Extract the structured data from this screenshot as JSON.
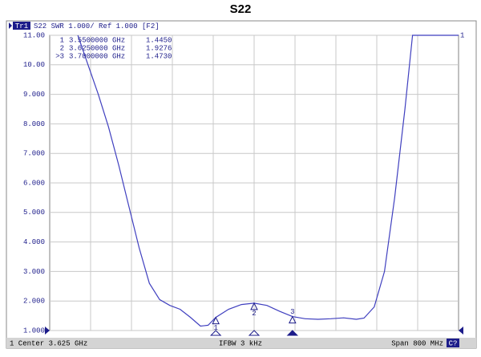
{
  "chart_data": {
    "type": "line",
    "title": "S22",
    "header": {
      "trace": "Tr1",
      "text": "S22  SWR 1.000/ Ref 1.000 [F2]"
    },
    "trace_number": "1",
    "x": [
      3.28,
      3.3,
      3.32,
      3.34,
      3.36,
      3.38,
      3.4,
      3.42,
      3.44,
      3.46,
      3.48,
      3.5,
      3.52,
      3.535,
      3.55,
      3.575,
      3.6,
      3.625,
      3.65,
      3.675,
      3.7,
      3.725,
      3.75,
      3.775,
      3.8,
      3.825,
      3.84,
      3.86,
      3.88,
      3.9,
      3.92,
      3.935,
      4.025
    ],
    "values": [
      11.0,
      10.0,
      9.0,
      7.9,
      6.6,
      5.2,
      3.8,
      2.6,
      2.05,
      1.85,
      1.72,
      1.45,
      1.15,
      1.18,
      1.445,
      1.72,
      1.88,
      1.9276,
      1.85,
      1.65,
      1.473,
      1.4,
      1.38,
      1.4,
      1.43,
      1.38,
      1.42,
      1.8,
      3.0,
      5.5,
      8.5,
      11.0,
      11.0
    ],
    "color": "#3f3fbf",
    "xlim": [
      3.225,
      4.025
    ],
    "x_divisions": 10,
    "ylim": [
      1,
      11
    ],
    "yticks": [
      {
        "value": 11,
        "label": "11.00"
      },
      {
        "value": 10,
        "label": "10.00"
      },
      {
        "value": 9,
        "label": "9.000"
      },
      {
        "value": 8,
        "label": "8.000"
      },
      {
        "value": 7,
        "label": "7.000"
      },
      {
        "value": 6,
        "label": "6.000"
      },
      {
        "value": 5,
        "label": "5.000"
      },
      {
        "value": 4,
        "label": "4.000"
      },
      {
        "value": 3,
        "label": "3.000"
      },
      {
        "value": 2,
        "label": "2.000"
      },
      {
        "value": 1,
        "label": "1.000"
      }
    ],
    "grid": true,
    "markers": [
      {
        "name": "1",
        "row_label": "1",
        "x": 3.55,
        "value": 1.445,
        "x_label": "3.5500000 GHz",
        "value_label": "1.4450",
        "active": false
      },
      {
        "name": "2",
        "row_label": "2",
        "x": 3.625,
        "value": 1.9276,
        "x_label": "3.6250000 GHz",
        "value_label": "1.9276",
        "active": false
      },
      {
        "name": "3",
        "row_label": ">3",
        "x": 3.7,
        "value": 1.473,
        "x_label": "3.7000000 GHz",
        "value_label": "1.4730",
        "active": true
      }
    ],
    "status": {
      "center": "1  Center 3.625 GHz",
      "ifbw": "IFBW 3 kHz",
      "span": "Span 800 MHz",
      "channel": "C?"
    }
  }
}
